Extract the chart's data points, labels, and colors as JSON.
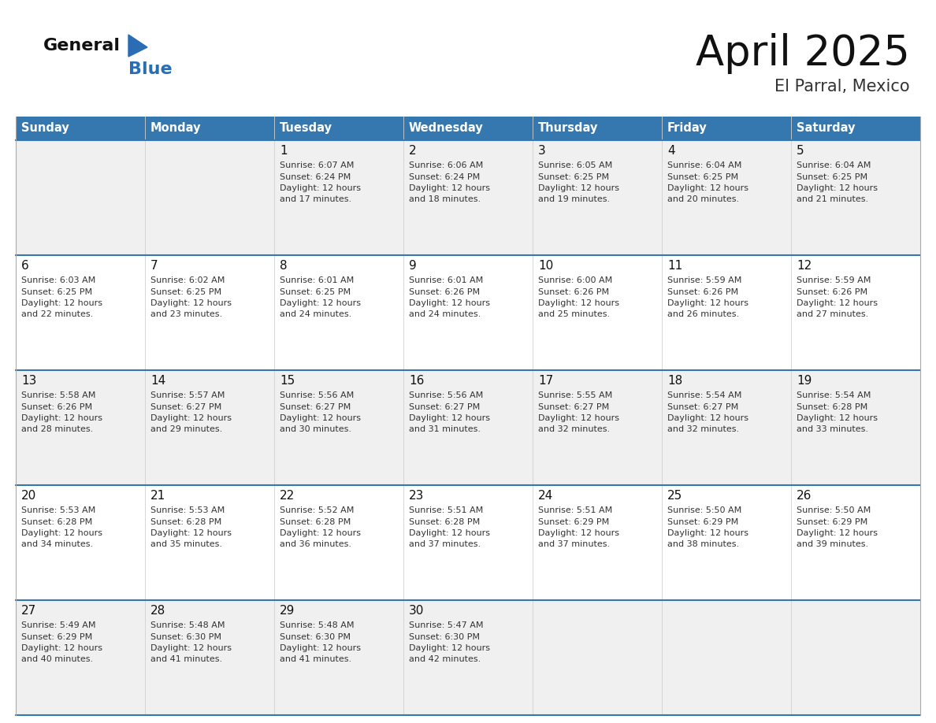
{
  "title": "April 2025",
  "subtitle": "El Parral, Mexico",
  "days_of_week": [
    "Sunday",
    "Monday",
    "Tuesday",
    "Wednesday",
    "Thursday",
    "Friday",
    "Saturday"
  ],
  "header_bg": "#3578b0",
  "header_text": "#ffffff",
  "row_bg_light": "#f0f0f0",
  "row_bg_white": "#ffffff",
  "row_border_color": "#3578b0",
  "col_separator_color": "#d0d0d0",
  "outer_border_color": "#aaaaaa",
  "title_color": "#111111",
  "subtitle_color": "#333333",
  "day_number_color": "#111111",
  "cell_text_color": "#333333",
  "logo_general_color": "#111111",
  "logo_blue_color": "#2a6db5",
  "calendar_data": [
    [
      {
        "day": null,
        "info": null
      },
      {
        "day": null,
        "info": null
      },
      {
        "day": 1,
        "info": "Sunrise: 6:07 AM\nSunset: 6:24 PM\nDaylight: 12 hours\nand 17 minutes."
      },
      {
        "day": 2,
        "info": "Sunrise: 6:06 AM\nSunset: 6:24 PM\nDaylight: 12 hours\nand 18 minutes."
      },
      {
        "day": 3,
        "info": "Sunrise: 6:05 AM\nSunset: 6:25 PM\nDaylight: 12 hours\nand 19 minutes."
      },
      {
        "day": 4,
        "info": "Sunrise: 6:04 AM\nSunset: 6:25 PM\nDaylight: 12 hours\nand 20 minutes."
      },
      {
        "day": 5,
        "info": "Sunrise: 6:04 AM\nSunset: 6:25 PM\nDaylight: 12 hours\nand 21 minutes."
      }
    ],
    [
      {
        "day": 6,
        "info": "Sunrise: 6:03 AM\nSunset: 6:25 PM\nDaylight: 12 hours\nand 22 minutes."
      },
      {
        "day": 7,
        "info": "Sunrise: 6:02 AM\nSunset: 6:25 PM\nDaylight: 12 hours\nand 23 minutes."
      },
      {
        "day": 8,
        "info": "Sunrise: 6:01 AM\nSunset: 6:25 PM\nDaylight: 12 hours\nand 24 minutes."
      },
      {
        "day": 9,
        "info": "Sunrise: 6:01 AM\nSunset: 6:26 PM\nDaylight: 12 hours\nand 24 minutes."
      },
      {
        "day": 10,
        "info": "Sunrise: 6:00 AM\nSunset: 6:26 PM\nDaylight: 12 hours\nand 25 minutes."
      },
      {
        "day": 11,
        "info": "Sunrise: 5:59 AM\nSunset: 6:26 PM\nDaylight: 12 hours\nand 26 minutes."
      },
      {
        "day": 12,
        "info": "Sunrise: 5:59 AM\nSunset: 6:26 PM\nDaylight: 12 hours\nand 27 minutes."
      }
    ],
    [
      {
        "day": 13,
        "info": "Sunrise: 5:58 AM\nSunset: 6:26 PM\nDaylight: 12 hours\nand 28 minutes."
      },
      {
        "day": 14,
        "info": "Sunrise: 5:57 AM\nSunset: 6:27 PM\nDaylight: 12 hours\nand 29 minutes."
      },
      {
        "day": 15,
        "info": "Sunrise: 5:56 AM\nSunset: 6:27 PM\nDaylight: 12 hours\nand 30 minutes."
      },
      {
        "day": 16,
        "info": "Sunrise: 5:56 AM\nSunset: 6:27 PM\nDaylight: 12 hours\nand 31 minutes."
      },
      {
        "day": 17,
        "info": "Sunrise: 5:55 AM\nSunset: 6:27 PM\nDaylight: 12 hours\nand 32 minutes."
      },
      {
        "day": 18,
        "info": "Sunrise: 5:54 AM\nSunset: 6:27 PM\nDaylight: 12 hours\nand 32 minutes."
      },
      {
        "day": 19,
        "info": "Sunrise: 5:54 AM\nSunset: 6:28 PM\nDaylight: 12 hours\nand 33 minutes."
      }
    ],
    [
      {
        "day": 20,
        "info": "Sunrise: 5:53 AM\nSunset: 6:28 PM\nDaylight: 12 hours\nand 34 minutes."
      },
      {
        "day": 21,
        "info": "Sunrise: 5:53 AM\nSunset: 6:28 PM\nDaylight: 12 hours\nand 35 minutes."
      },
      {
        "day": 22,
        "info": "Sunrise: 5:52 AM\nSunset: 6:28 PM\nDaylight: 12 hours\nand 36 minutes."
      },
      {
        "day": 23,
        "info": "Sunrise: 5:51 AM\nSunset: 6:28 PM\nDaylight: 12 hours\nand 37 minutes."
      },
      {
        "day": 24,
        "info": "Sunrise: 5:51 AM\nSunset: 6:29 PM\nDaylight: 12 hours\nand 37 minutes."
      },
      {
        "day": 25,
        "info": "Sunrise: 5:50 AM\nSunset: 6:29 PM\nDaylight: 12 hours\nand 38 minutes."
      },
      {
        "day": 26,
        "info": "Sunrise: 5:50 AM\nSunset: 6:29 PM\nDaylight: 12 hours\nand 39 minutes."
      }
    ],
    [
      {
        "day": 27,
        "info": "Sunrise: 5:49 AM\nSunset: 6:29 PM\nDaylight: 12 hours\nand 40 minutes."
      },
      {
        "day": 28,
        "info": "Sunrise: 5:48 AM\nSunset: 6:30 PM\nDaylight: 12 hours\nand 41 minutes."
      },
      {
        "day": 29,
        "info": "Sunrise: 5:48 AM\nSunset: 6:30 PM\nDaylight: 12 hours\nand 41 minutes."
      },
      {
        "day": 30,
        "info": "Sunrise: 5:47 AM\nSunset: 6:30 PM\nDaylight: 12 hours\nand 42 minutes."
      },
      {
        "day": null,
        "info": null
      },
      {
        "day": null,
        "info": null
      },
      {
        "day": null,
        "info": null
      }
    ]
  ]
}
